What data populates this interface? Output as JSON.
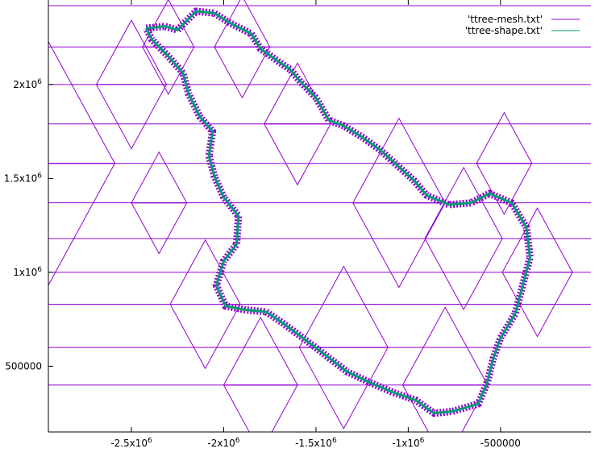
{
  "chart_data": {
    "type": "line",
    "title": "",
    "xlabel": "",
    "ylabel": "",
    "xlim": [
      -2950000,
      -10000
    ],
    "ylim": [
      150000,
      2450000
    ],
    "x_ticks": [
      {
        "value": -2500000,
        "label": "-2.5x10",
        "exp": "6"
      },
      {
        "value": -2000000,
        "label": "-2x10",
        "exp": "6"
      },
      {
        "value": -1500000,
        "label": "-1.5x10",
        "exp": "6"
      },
      {
        "value": -1000000,
        "label": "-1x10",
        "exp": "6"
      },
      {
        "value": -500000,
        "label": "-500000",
        "exp": ""
      }
    ],
    "y_ticks": [
      {
        "value": 500000,
        "label": "500000",
        "exp": ""
      },
      {
        "value": 1000000,
        "label": "1x10",
        "exp": "6"
      },
      {
        "value": 1500000,
        "label": "1.5x10",
        "exp": "6"
      },
      {
        "value": 2000000,
        "label": "2x10",
        "exp": "6"
      }
    ],
    "legend_position": "top-right",
    "series": [
      {
        "name": "'ttree-mesh.txt'",
        "color": "#9400d3",
        "kind": "triangle-mesh",
        "horizontal_lines_y": [
          150000,
          400000,
          600000,
          830000,
          1000000,
          1180000,
          1370000,
          1580000,
          1790000,
          2000000,
          2200000,
          2420000
        ],
        "side": 720000,
        "triangles": [
          [
            -2950000,
            1580000,
            720000
          ],
          [
            -2500000,
            2000000,
            380000
          ],
          [
            -2300000,
            2200000,
            280000
          ],
          [
            -1900000,
            2200000,
            300000
          ],
          [
            -1600000,
            1790000,
            360000
          ],
          [
            -1050000,
            1370000,
            500000
          ],
          [
            -700000,
            1180000,
            420000
          ],
          [
            -480000,
            1580000,
            300000
          ],
          [
            -2100000,
            830000,
            380000
          ],
          [
            -1350000,
            600000,
            480000
          ],
          [
            -1800000,
            400000,
            400000
          ],
          [
            -800000,
            400000,
            460000
          ],
          [
            -300000,
            1000000,
            380000
          ],
          [
            -2350000,
            1370000,
            300000
          ]
        ]
      },
      {
        "name": "'ttree-shape.txt'",
        "color": "#009e73",
        "kind": "outline",
        "points": [
          [
            -2420000,
            2300000
          ],
          [
            -2320000,
            2310000
          ],
          [
            -2250000,
            2290000
          ],
          [
            -2150000,
            2390000
          ],
          [
            -2050000,
            2380000
          ],
          [
            -1970000,
            2330000
          ],
          [
            -1850000,
            2270000
          ],
          [
            -1800000,
            2190000
          ],
          [
            -1700000,
            2120000
          ],
          [
            -1640000,
            2080000
          ],
          [
            -1580000,
            2010000
          ],
          [
            -1500000,
            1930000
          ],
          [
            -1430000,
            1810000
          ],
          [
            -1350000,
            1780000
          ],
          [
            -1250000,
            1720000
          ],
          [
            -1150000,
            1650000
          ],
          [
            -1060000,
            1570000
          ],
          [
            -970000,
            1490000
          ],
          [
            -900000,
            1410000
          ],
          [
            -780000,
            1360000
          ],
          [
            -660000,
            1370000
          ],
          [
            -560000,
            1420000
          ],
          [
            -440000,
            1370000
          ],
          [
            -360000,
            1240000
          ],
          [
            -340000,
            1080000
          ],
          [
            -380000,
            930000
          ],
          [
            -420000,
            780000
          ],
          [
            -500000,
            650000
          ],
          [
            -540000,
            540000
          ],
          [
            -570000,
            420000
          ],
          [
            -620000,
            300000
          ],
          [
            -760000,
            260000
          ],
          [
            -860000,
            250000
          ],
          [
            -960000,
            320000
          ],
          [
            -1080000,
            360000
          ],
          [
            -1200000,
            410000
          ],
          [
            -1330000,
            470000
          ],
          [
            -1450000,
            560000
          ],
          [
            -1570000,
            650000
          ],
          [
            -1680000,
            730000
          ],
          [
            -1770000,
            790000
          ],
          [
            -1880000,
            800000
          ],
          [
            -1990000,
            820000
          ],
          [
            -2040000,
            930000
          ],
          [
            -2000000,
            1060000
          ],
          [
            -1930000,
            1150000
          ],
          [
            -1920000,
            1300000
          ],
          [
            -2000000,
            1400000
          ],
          [
            -2050000,
            1510000
          ],
          [
            -2080000,
            1620000
          ],
          [
            -2060000,
            1750000
          ],
          [
            -2130000,
            1830000
          ],
          [
            -2190000,
            1950000
          ],
          [
            -2220000,
            2060000
          ],
          [
            -2300000,
            2150000
          ],
          [
            -2390000,
            2240000
          ],
          [
            -2420000,
            2300000
          ]
        ]
      }
    ]
  }
}
